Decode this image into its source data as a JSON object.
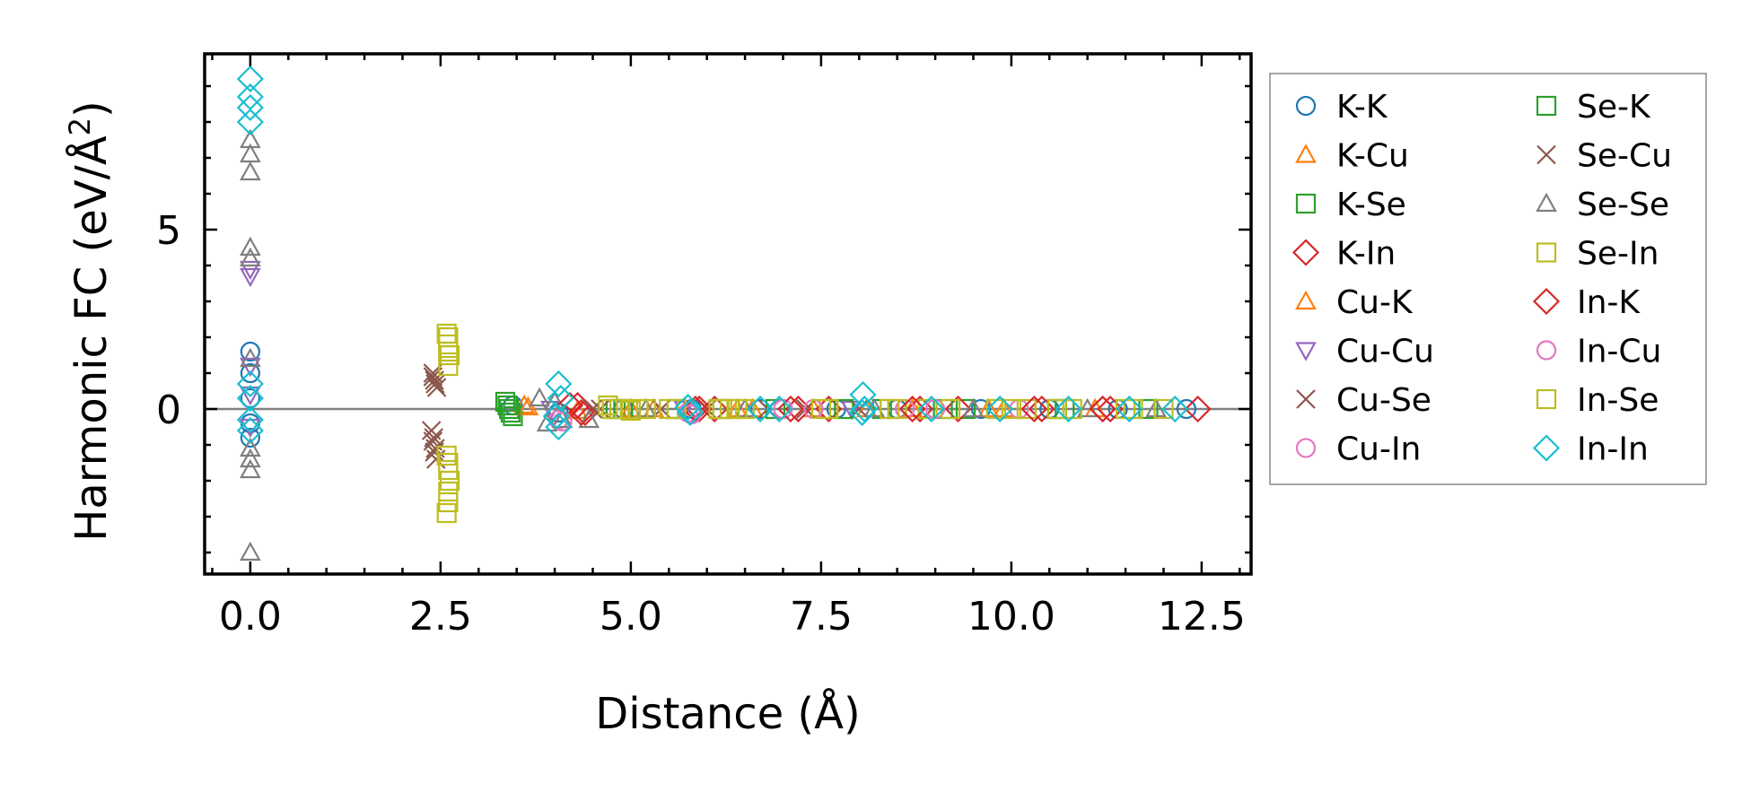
{
  "chart_data": {
    "type": "scatter",
    "title": "",
    "xlabel": "Distance (Å)",
    "ylabel_main": "Harmonic FC (eV/Å",
    "ylabel_sup": "2",
    "ylabel_close": ")",
    "xlim": [
      -0.6,
      13.15
    ],
    "ylim": [
      -4.6,
      9.9
    ],
    "xticks": [
      0.0,
      2.5,
      5.0,
      7.5,
      10.0,
      12.5
    ],
    "xtick_labels": [
      "0.0",
      "2.5",
      "5.0",
      "7.5",
      "10.0",
      "12.5"
    ],
    "yticks": [
      0,
      5
    ],
    "ytick_labels": [
      "0",
      "5"
    ],
    "reference_line_y": 0,
    "legend_position": "outside-right",
    "series": [
      {
        "name": "K-K",
        "marker": "circle",
        "color": "#1f77b4",
        "points": [
          [
            0,
            1.6
          ],
          [
            0,
            1.0
          ],
          [
            0,
            0.3
          ],
          [
            0,
            -0.4
          ],
          [
            0,
            -0.8
          ],
          [
            3.45,
            0.1
          ],
          [
            4.05,
            -0.1
          ],
          [
            4.9,
            0.0
          ],
          [
            5.8,
            0.0
          ],
          [
            6.7,
            0.0
          ],
          [
            7.7,
            0.0
          ],
          [
            8.5,
            0.0
          ],
          [
            9.6,
            0.0
          ],
          [
            10.5,
            0.0
          ],
          [
            11.4,
            0.0
          ],
          [
            12.3,
            0.0
          ]
        ]
      },
      {
        "name": "K-Cu",
        "marker": "triangle-up",
        "color": "#ff7f0e",
        "points": [
          [
            3.6,
            0.1
          ],
          [
            4.3,
            -0.05
          ],
          [
            5.3,
            0.0
          ],
          [
            6.4,
            0.0
          ],
          [
            7.4,
            0.0
          ],
          [
            8.7,
            0.0
          ],
          [
            9.9,
            0.0
          ],
          [
            11.1,
            0.0
          ]
        ]
      },
      {
        "name": "K-Se",
        "marker": "square",
        "color": "#2ca02c",
        "points": [
          [
            3.35,
            0.2
          ],
          [
            3.4,
            0.0
          ],
          [
            3.45,
            -0.2
          ],
          [
            4.8,
            0.0
          ],
          [
            5.6,
            0.0
          ],
          [
            6.9,
            0.0
          ],
          [
            8.3,
            0.0
          ],
          [
            9.4,
            0.0
          ],
          [
            10.7,
            0.0
          ],
          [
            11.8,
            0.0
          ]
        ]
      },
      {
        "name": "K-In",
        "marker": "diamond",
        "color": "#d62728",
        "points": [
          [
            4.3,
            0.1
          ],
          [
            4.4,
            -0.1
          ],
          [
            5.9,
            0.0
          ],
          [
            6.1,
            0.0
          ],
          [
            7.2,
            0.0
          ],
          [
            7.6,
            0.0
          ],
          [
            8.8,
            0.0
          ],
          [
            9.3,
            0.0
          ],
          [
            10.4,
            0.0
          ],
          [
            11.2,
            0.0
          ],
          [
            11.3,
            0.0
          ],
          [
            12.45,
            0.0
          ]
        ]
      },
      {
        "name": "Cu-K",
        "marker": "triangle-up",
        "color": "#ff7f0e",
        "points": [
          [
            3.65,
            0.05
          ],
          [
            5.0,
            0.0
          ],
          [
            6.6,
            0.0
          ],
          [
            8.1,
            0.0
          ],
          [
            9.7,
            0.0
          ]
        ]
      },
      {
        "name": "Cu-Cu",
        "marker": "triangle-down",
        "color": "#9467bd",
        "points": [
          [
            0,
            3.9
          ],
          [
            0,
            3.7
          ],
          [
            0,
            1.2
          ],
          [
            0,
            0.4
          ],
          [
            0,
            -0.5
          ],
          [
            3.95,
            0.0
          ],
          [
            5.7,
            0.0
          ],
          [
            7.9,
            0.0
          ]
        ]
      },
      {
        "name": "Cu-Se",
        "marker": "x",
        "color": "#8c564b",
        "points": [
          [
            2.4,
            1.0
          ],
          [
            2.42,
            0.8
          ],
          [
            2.45,
            0.6
          ],
          [
            2.38,
            -0.6
          ],
          [
            2.4,
            -0.9
          ],
          [
            2.42,
            -1.2
          ],
          [
            2.44,
            -1.4
          ],
          [
            4.5,
            0.0
          ],
          [
            5.4,
            0.0
          ],
          [
            6.8,
            0.0
          ],
          [
            8.0,
            0.0
          ]
        ]
      },
      {
        "name": "Cu-In",
        "marker": "circle",
        "color": "#e377c2",
        "points": [
          [
            4.05,
            -0.3
          ],
          [
            5.75,
            -0.1
          ],
          [
            7.0,
            0.0
          ],
          [
            8.6,
            0.0
          ],
          [
            10.1,
            0.0
          ]
        ]
      },
      {
        "name": "Se-K",
        "marker": "square",
        "color": "#2ca02c",
        "points": [
          [
            3.38,
            0.1
          ],
          [
            3.42,
            -0.1
          ],
          [
            4.9,
            0.0
          ],
          [
            6.2,
            0.0
          ],
          [
            7.8,
            0.0
          ],
          [
            9.1,
            0.0
          ],
          [
            10.6,
            0.0
          ]
        ]
      },
      {
        "name": "Se-Cu",
        "marker": "x",
        "color": "#8c564b",
        "points": [
          [
            2.4,
            0.9
          ],
          [
            2.43,
            0.7
          ],
          [
            2.41,
            -0.8
          ],
          [
            2.43,
            -1.1
          ],
          [
            4.6,
            0.0
          ],
          [
            6.0,
            0.0
          ],
          [
            7.3,
            0.0
          ]
        ]
      },
      {
        "name": "Se-Se",
        "marker": "triangle-up",
        "color": "#7f7f7f",
        "points": [
          [
            0,
            7.5
          ],
          [
            0,
            7.1
          ],
          [
            0,
            6.6
          ],
          [
            0,
            4.5
          ],
          [
            0,
            4.2
          ],
          [
            0,
            1.4
          ],
          [
            0,
            -1.1
          ],
          [
            0,
            -1.4
          ],
          [
            0,
            -1.7
          ],
          [
            0,
            -4.0
          ],
          [
            3.8,
            0.3
          ],
          [
            3.9,
            -0.4
          ],
          [
            4.0,
            0.2
          ],
          [
            4.1,
            -0.3
          ],
          [
            4.45,
            -0.3
          ],
          [
            5.2,
            0.0
          ],
          [
            6.5,
            0.0
          ],
          [
            8.2,
            0.0
          ],
          [
            9.5,
            0.0
          ],
          [
            11.0,
            0.0
          ],
          [
            11.9,
            0.0
          ]
        ]
      },
      {
        "name": "Se-In",
        "marker": "square",
        "color": "#bcbd22",
        "points": [
          [
            2.58,
            2.1
          ],
          [
            2.6,
            1.8
          ],
          [
            2.62,
            1.5
          ],
          [
            2.6,
            1.2
          ],
          [
            2.58,
            -1.3
          ],
          [
            2.6,
            -1.7
          ],
          [
            2.62,
            -2.0
          ],
          [
            2.6,
            -2.6
          ],
          [
            2.58,
            -2.9
          ],
          [
            4.7,
            0.1
          ],
          [
            4.85,
            0.0
          ],
          [
            5.0,
            -0.05
          ],
          [
            5.2,
            0.0
          ],
          [
            5.5,
            0.0
          ],
          [
            6.15,
            0.0
          ],
          [
            6.3,
            0.0
          ],
          [
            6.5,
            0.0
          ],
          [
            7.6,
            0.0
          ],
          [
            8.5,
            0.0
          ],
          [
            8.9,
            0.0
          ],
          [
            9.8,
            0.0
          ],
          [
            10.2,
            0.0
          ],
          [
            10.6,
            0.0
          ],
          [
            11.6,
            0.0
          ],
          [
            12.0,
            0.0
          ]
        ]
      },
      {
        "name": "In-K",
        "marker": "diamond",
        "color": "#d62728",
        "points": [
          [
            4.2,
            0.1
          ],
          [
            4.35,
            -0.1
          ],
          [
            5.85,
            0.0
          ],
          [
            7.1,
            0.0
          ],
          [
            8.7,
            0.0
          ],
          [
            10.3,
            0.0
          ],
          [
            11.2,
            0.0
          ]
        ]
      },
      {
        "name": "In-Cu",
        "marker": "circle",
        "color": "#e377c2",
        "points": [
          [
            4.1,
            -0.35
          ],
          [
            5.8,
            -0.15
          ],
          [
            7.4,
            0.0
          ],
          [
            9.0,
            0.0
          ]
        ]
      },
      {
        "name": "In-Se",
        "marker": "square",
        "color": "#bcbd22",
        "points": [
          [
            2.6,
            2.0
          ],
          [
            2.6,
            1.6
          ],
          [
            2.6,
            -1.5
          ],
          [
            2.6,
            -2.3
          ],
          [
            4.75,
            0.0
          ],
          [
            5.1,
            0.0
          ],
          [
            5.6,
            0.0
          ],
          [
            6.2,
            0.0
          ],
          [
            6.4,
            0.0
          ],
          [
            7.5,
            0.0
          ],
          [
            8.4,
            0.0
          ],
          [
            9.2,
            0.0
          ],
          [
            10.0,
            0.0
          ],
          [
            10.8,
            0.0
          ],
          [
            11.5,
            0.0
          ]
        ]
      },
      {
        "name": "In-In",
        "marker": "diamond",
        "color": "#17becf",
        "points": [
          [
            0,
            9.2
          ],
          [
            0,
            8.7
          ],
          [
            0,
            8.4
          ],
          [
            0,
            8.0
          ],
          [
            0,
            0.7
          ],
          [
            0,
            0.3
          ],
          [
            0,
            -0.3
          ],
          [
            0,
            -0.6
          ],
          [
            4.05,
            0.7
          ],
          [
            4.08,
            0.3
          ],
          [
            4.02,
            -0.2
          ],
          [
            4.05,
            -0.5
          ],
          [
            5.75,
            0.05
          ],
          [
            5.78,
            -0.1
          ],
          [
            6.7,
            0.0
          ],
          [
            6.95,
            0.0
          ],
          [
            8.05,
            0.4
          ],
          [
            8.07,
            0.0
          ],
          [
            8.04,
            -0.1
          ],
          [
            8.95,
            0.0
          ],
          [
            9.85,
            0.0
          ],
          [
            10.75,
            0.0
          ],
          [
            11.55,
            0.0
          ],
          [
            12.15,
            0.0
          ]
        ]
      }
    ]
  }
}
